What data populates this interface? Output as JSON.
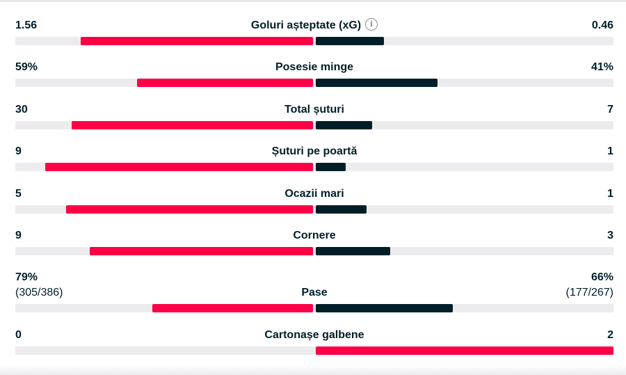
{
  "colors": {
    "home_bar": "#ff0046",
    "away_bar": "#001e28",
    "highlight_bar": "#ff0046",
    "track": "#ececee"
  },
  "stats": [
    {
      "label": "Goluri așteptate (xG)",
      "home": "1.56",
      "away": "0.46",
      "home_fill": 0.78,
      "away_fill": 0.23,
      "info_icon": "info-icon"
    },
    {
      "label": "Posesie minge",
      "home": "59%",
      "away": "41%",
      "home_fill": 0.59,
      "away_fill": 0.41
    },
    {
      "label": "Total șuturi",
      "home": "30",
      "away": "7",
      "home_fill": 0.81,
      "away_fill": 0.19
    },
    {
      "label": "Șuturi pe poartă",
      "home": "9",
      "away": "1",
      "home_fill": 0.9,
      "away_fill": 0.1
    },
    {
      "label": "Ocazii mari",
      "home": "5",
      "away": "1",
      "home_fill": 0.83,
      "away_fill": 0.17
    },
    {
      "label": "Cornere",
      "home": "9",
      "away": "3",
      "home_fill": 0.75,
      "away_fill": 0.25
    },
    {
      "label": "Pase",
      "home": "79%",
      "away": "66%",
      "home_sub": "(305/386)",
      "away_sub": "(177/267)",
      "home_fill": 0.54,
      "away_fill": 0.46
    },
    {
      "label": "Cartonașe galbene",
      "home": "0",
      "away": "2",
      "home_fill": 0.0,
      "away_fill": 1.0,
      "away_highlight": true
    }
  ]
}
